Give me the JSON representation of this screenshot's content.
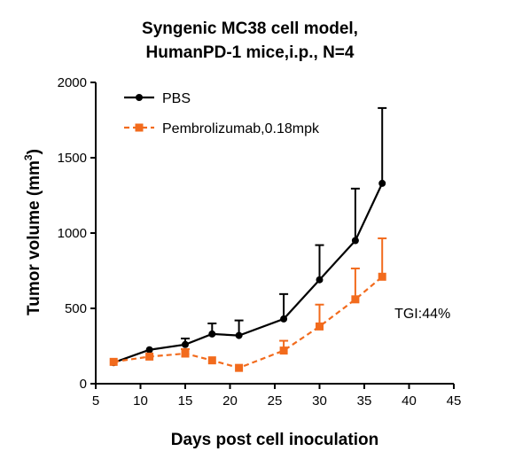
{
  "chart_data": {
    "type": "line",
    "title_lines": [
      "Syngenic MC38 cell model,",
      "HumanPD-1 mice,i.p., N=4"
    ],
    "xlabel": "Days post cell inoculation",
    "ylabel": "Tumor volume (mm",
    "ylabel_sup": "3",
    "ylabel_close": ")",
    "xlim": [
      5,
      45
    ],
    "ylim": [
      0,
      2000
    ],
    "x_ticks": [
      5,
      10,
      15,
      20,
      25,
      30,
      35,
      40,
      45
    ],
    "y_ticks": [
      0,
      500,
      1000,
      1500,
      2000
    ],
    "grid": false,
    "legend_position": "top-left",
    "series": [
      {
        "name": "PBS",
        "color": "#000000",
        "marker": "circle",
        "line_style": "solid",
        "x": [
          7,
          11,
          15,
          18,
          21,
          26,
          30,
          34,
          37
        ],
        "y": [
          140,
          225,
          260,
          330,
          320,
          430,
          690,
          950,
          1330
        ],
        "error_upper": [
          0,
          0,
          40,
          70,
          100,
          165,
          230,
          345,
          500
        ]
      },
      {
        "name": "Pembrolizumab,0.18mpk",
        "color": "#F26B1D",
        "marker": "square",
        "line_style": "dashed",
        "x": [
          7,
          11,
          15,
          18,
          21,
          26,
          30,
          34,
          37
        ],
        "y": [
          145,
          180,
          200,
          155,
          105,
          220,
          380,
          560,
          710
        ],
        "error_upper": [
          0,
          0,
          30,
          0,
          0,
          65,
          145,
          205,
          255
        ]
      }
    ],
    "annotations": [
      {
        "text": "TGI:44%",
        "x": 41.5,
        "y": 470
      }
    ]
  }
}
